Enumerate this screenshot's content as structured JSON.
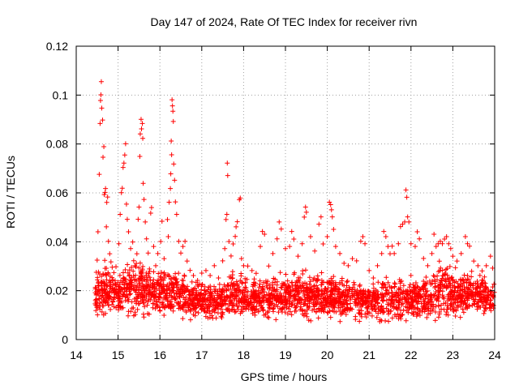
{
  "chart_data": {
    "type": "scatter",
    "title": "Day 147 of 2024, Rate Of TEC Index for receiver rivn",
    "xlabel": "GPS time / hours",
    "ylabel": "ROTI / TECUs",
    "xlim": [
      14,
      24
    ],
    "ylim": [
      0,
      0.12
    ],
    "x_ticks": [
      14,
      15,
      16,
      17,
      18,
      19,
      20,
      21,
      22,
      23,
      24
    ],
    "x_tick_labels": [
      "14",
      "15",
      "16",
      "17",
      "18",
      "19",
      "20",
      "21",
      "22",
      "23",
      "24"
    ],
    "y_ticks": [
      0,
      0.02,
      0.04,
      0.06,
      0.08,
      0.1,
      0.12
    ],
    "y_tick_labels": [
      "0",
      "0.02",
      "0.04",
      "0.06",
      "0.08",
      "0.1",
      "0.12"
    ],
    "grid": true,
    "marker": "+",
    "marker_color": "#ff0000",
    "series": [
      {
        "name": "ROTI",
        "points": [
          [
            14.48,
            0.0275
          ],
          [
            14.5,
            0.0325
          ],
          [
            14.52,
            0.0441
          ],
          [
            14.55,
            0.0676
          ],
          [
            14.57,
            0.0884
          ],
          [
            14.58,
            0.0978
          ],
          [
            14.59,
            0.1001
          ],
          [
            14.6,
            0.1055
          ],
          [
            14.61,
            0.0947
          ],
          [
            14.63,
            0.0898
          ],
          [
            14.64,
            0.0746
          ],
          [
            14.66,
            0.0789
          ],
          [
            14.67,
            0.0593
          ],
          [
            14.69,
            0.0602
          ],
          [
            14.7,
            0.0618
          ],
          [
            14.72,
            0.0461
          ],
          [
            14.73,
            0.0561
          ],
          [
            14.75,
            0.0583
          ],
          [
            14.77,
            0.0402
          ],
          [
            14.8,
            0.0351
          ],
          [
            14.83,
            0.0318
          ],
          [
            14.86,
            0.0296
          ],
          [
            14.9,
            0.0274
          ],
          [
            14.95,
            0.0298
          ],
          [
            15.02,
            0.0392
          ],
          [
            15.05,
            0.0512
          ],
          [
            15.08,
            0.0601
          ],
          [
            15.1,
            0.0619
          ],
          [
            15.12,
            0.0704
          ],
          [
            15.14,
            0.0722
          ],
          [
            15.16,
            0.0755
          ],
          [
            15.18,
            0.0801
          ],
          [
            15.2,
            0.0554
          ],
          [
            15.22,
            0.0492
          ],
          [
            15.25,
            0.0441
          ],
          [
            15.3,
            0.0372
          ],
          [
            15.35,
            0.0399
          ],
          [
            15.4,
            0.0302
          ],
          [
            15.45,
            0.0351
          ],
          [
            15.48,
            0.0492
          ],
          [
            15.5,
            0.0542
          ],
          [
            15.52,
            0.0749
          ],
          [
            15.53,
            0.0841
          ],
          [
            15.55,
            0.0901
          ],
          [
            15.56,
            0.0862
          ],
          [
            15.58,
            0.0884
          ],
          [
            15.59,
            0.0823
          ],
          [
            15.6,
            0.0639
          ],
          [
            15.62,
            0.0573
          ],
          [
            15.65,
            0.0481
          ],
          [
            15.68,
            0.0412
          ],
          [
            15.72,
            0.0354
          ],
          [
            15.78,
            0.0517
          ],
          [
            15.8,
            0.054
          ],
          [
            15.85,
            0.0381
          ],
          [
            15.9,
            0.0302
          ],
          [
            15.95,
            0.0352
          ],
          [
            16.02,
            0.0401
          ],
          [
            16.05,
            0.0484
          ],
          [
            16.1,
            0.0331
          ],
          [
            16.18,
            0.0491
          ],
          [
            16.2,
            0.0421
          ],
          [
            16.22,
            0.0562
          ],
          [
            16.25,
            0.0618
          ],
          [
            16.26,
            0.0678
          ],
          [
            16.27,
            0.0812
          ],
          [
            16.28,
            0.0756
          ],
          [
            16.29,
            0.0981
          ],
          [
            16.3,
            0.0956
          ],
          [
            16.31,
            0.0934
          ],
          [
            16.32,
            0.0892
          ],
          [
            16.33,
            0.0718
          ],
          [
            16.35,
            0.0652
          ],
          [
            16.37,
            0.0563
          ],
          [
            16.4,
            0.0512
          ],
          [
            16.45,
            0.0402
          ],
          [
            16.5,
            0.0354
          ],
          [
            16.55,
            0.0381
          ],
          [
            16.6,
            0.0402
          ],
          [
            16.65,
            0.0321
          ],
          [
            16.72,
            0.0283
          ],
          [
            16.8,
            0.0262
          ],
          [
            16.9,
            0.0242
          ],
          [
            17.0,
            0.0272
          ],
          [
            17.1,
            0.0282
          ],
          [
            17.2,
            0.0262
          ],
          [
            17.3,
            0.0302
          ],
          [
            17.4,
            0.0252
          ],
          [
            17.5,
            0.0322
          ],
          [
            17.55,
            0.0372
          ],
          [
            17.58,
            0.0491
          ],
          [
            17.6,
            0.0512
          ],
          [
            17.61,
            0.0722
          ],
          [
            17.62,
            0.0671
          ],
          [
            17.65,
            0.0401
          ],
          [
            17.7,
            0.0342
          ],
          [
            17.75,
            0.0391
          ],
          [
            17.8,
            0.0422
          ],
          [
            17.82,
            0.0461
          ],
          [
            17.85,
            0.0482
          ],
          [
            17.9,
            0.0572
          ],
          [
            17.92,
            0.0579
          ],
          [
            17.95,
            0.0331
          ],
          [
            18.0,
            0.0302
          ],
          [
            18.1,
            0.0301
          ],
          [
            18.2,
            0.0282
          ],
          [
            18.3,
            0.0271
          ],
          [
            18.4,
            0.0381
          ],
          [
            18.45,
            0.0442
          ],
          [
            18.5,
            0.0431
          ],
          [
            18.6,
            0.0301
          ],
          [
            18.7,
            0.0352
          ],
          [
            18.8,
            0.0412
          ],
          [
            18.85,
            0.0481
          ],
          [
            18.9,
            0.0452
          ],
          [
            19.0,
            0.0372
          ],
          [
            19.1,
            0.0381
          ],
          [
            19.15,
            0.0442
          ],
          [
            19.2,
            0.0411
          ],
          [
            19.3,
            0.0341
          ],
          [
            19.4,
            0.0392
          ],
          [
            19.45,
            0.0501
          ],
          [
            19.48,
            0.0542
          ],
          [
            19.5,
            0.0521
          ],
          [
            19.6,
            0.0421
          ],
          [
            19.7,
            0.0362
          ],
          [
            19.8,
            0.0472
          ],
          [
            19.85,
            0.0502
          ],
          [
            19.9,
            0.0391
          ],
          [
            20.0,
            0.0421
          ],
          [
            20.05,
            0.0562
          ],
          [
            20.08,
            0.0552
          ],
          [
            20.1,
            0.0531
          ],
          [
            20.12,
            0.0502
          ],
          [
            20.15,
            0.0451
          ],
          [
            20.2,
            0.0381
          ],
          [
            20.3,
            0.0352
          ],
          [
            20.4,
            0.0312
          ],
          [
            20.5,
            0.0302
          ],
          [
            20.6,
            0.0331
          ],
          [
            20.7,
            0.0322
          ],
          [
            20.8,
            0.0402
          ],
          [
            20.85,
            0.0421
          ],
          [
            20.9,
            0.0392
          ],
          [
            21.0,
            0.0282
          ],
          [
            21.1,
            0.0252
          ],
          [
            21.2,
            0.0302
          ],
          [
            21.3,
            0.0352
          ],
          [
            21.35,
            0.0442
          ],
          [
            21.4,
            0.0421
          ],
          [
            21.45,
            0.0381
          ],
          [
            21.5,
            0.0351
          ],
          [
            21.55,
            0.0382
          ],
          [
            21.6,
            0.0352
          ],
          [
            21.7,
            0.0392
          ],
          [
            21.75,
            0.0462
          ],
          [
            21.8,
            0.0472
          ],
          [
            21.85,
            0.0481
          ],
          [
            21.88,
            0.0612
          ],
          [
            21.9,
            0.0582
          ],
          [
            21.92,
            0.0502
          ],
          [
            21.95,
            0.0481
          ],
          [
            22.0,
            0.0392
          ],
          [
            22.1,
            0.0381
          ],
          [
            22.15,
            0.0441
          ],
          [
            22.2,
            0.0412
          ],
          [
            22.3,
            0.0332
          ],
          [
            22.4,
            0.0302
          ],
          [
            22.5,
            0.0352
          ],
          [
            22.55,
            0.0431
          ],
          [
            22.6,
            0.0381
          ],
          [
            22.65,
            0.0392
          ],
          [
            22.7,
            0.0402
          ],
          [
            22.75,
            0.0392
          ],
          [
            22.8,
            0.0411
          ],
          [
            22.85,
            0.0421
          ],
          [
            22.9,
            0.0392
          ],
          [
            22.95,
            0.0372
          ],
          [
            23.0,
            0.0341
          ],
          [
            23.1,
            0.0321
          ],
          [
            23.2,
            0.0352
          ],
          [
            23.3,
            0.0421
          ],
          [
            23.35,
            0.0392
          ],
          [
            23.4,
            0.0382
          ],
          [
            23.5,
            0.0321
          ],
          [
            23.6,
            0.0302
          ],
          [
            23.7,
            0.0281
          ],
          [
            23.8,
            0.0302
          ],
          [
            23.9,
            0.0341
          ],
          [
            23.95,
            0.0292
          ]
        ],
        "band_envelope": [
          [
            14.5,
            0.005,
            0.033
          ],
          [
            14.6,
            0.005,
            0.037
          ],
          [
            14.8,
            0.006,
            0.033
          ],
          [
            15.0,
            0.006,
            0.03
          ],
          [
            15.2,
            0.006,
            0.034
          ],
          [
            15.4,
            0.006,
            0.036
          ],
          [
            15.6,
            0.006,
            0.037
          ],
          [
            15.8,
            0.007,
            0.032
          ],
          [
            16.0,
            0.007,
            0.03
          ],
          [
            16.2,
            0.006,
            0.033
          ],
          [
            16.4,
            0.006,
            0.032
          ],
          [
            16.6,
            0.006,
            0.029
          ],
          [
            16.8,
            0.006,
            0.026
          ],
          [
            17.0,
            0.006,
            0.025
          ],
          [
            17.2,
            0.006,
            0.025
          ],
          [
            17.4,
            0.006,
            0.025
          ],
          [
            17.6,
            0.006,
            0.028
          ],
          [
            17.8,
            0.006,
            0.03
          ],
          [
            18.0,
            0.006,
            0.029
          ],
          [
            18.2,
            0.006,
            0.028
          ],
          [
            18.4,
            0.006,
            0.027
          ],
          [
            18.6,
            0.006,
            0.028
          ],
          [
            18.8,
            0.006,
            0.029
          ],
          [
            19.0,
            0.006,
            0.029
          ],
          [
            19.2,
            0.006,
            0.029
          ],
          [
            19.4,
            0.006,
            0.03
          ],
          [
            19.6,
            0.006,
            0.03
          ],
          [
            19.8,
            0.006,
            0.03
          ],
          [
            20.0,
            0.006,
            0.03
          ],
          [
            20.2,
            0.006,
            0.028
          ],
          [
            20.4,
            0.006,
            0.027
          ],
          [
            20.6,
            0.006,
            0.026
          ],
          [
            20.8,
            0.006,
            0.027
          ],
          [
            21.0,
            0.005,
            0.026
          ],
          [
            21.2,
            0.005,
            0.026
          ],
          [
            21.4,
            0.004,
            0.028
          ],
          [
            21.6,
            0.004,
            0.028
          ],
          [
            21.8,
            0.005,
            0.029
          ],
          [
            22.0,
            0.006,
            0.029
          ],
          [
            22.2,
            0.006,
            0.028
          ],
          [
            22.4,
            0.006,
            0.028
          ],
          [
            22.6,
            0.006,
            0.034
          ],
          [
            22.8,
            0.006,
            0.036
          ],
          [
            23.0,
            0.006,
            0.032
          ],
          [
            23.2,
            0.006,
            0.031
          ],
          [
            23.4,
            0.007,
            0.033
          ],
          [
            23.6,
            0.007,
            0.029
          ],
          [
            23.8,
            0.008,
            0.027
          ],
          [
            24.0,
            0.008,
            0.026
          ]
        ]
      }
    ]
  }
}
